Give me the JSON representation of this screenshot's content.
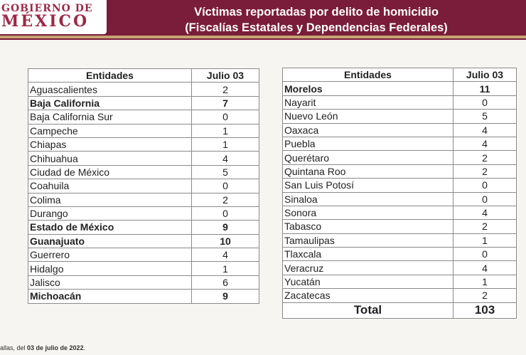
{
  "logo": {
    "line1": "GOBIERNO DE",
    "line2": "MÉXICO"
  },
  "title": {
    "line1": "Víctimas reportadas por delito de homicidio",
    "line2": "(Fiscalías Estatales y Dependencias Federales)"
  },
  "colors": {
    "header": "#7a1d3a",
    "accent": "#c7a472"
  },
  "table_left": {
    "headers": [
      "Entidades",
      "Julio 03"
    ],
    "rows": [
      {
        "entity": "Aguascalientes",
        "value": "2",
        "bold": false
      },
      {
        "entity": "Baja California",
        "value": "7",
        "bold": true
      },
      {
        "entity": "Baja California Sur",
        "value": "0",
        "bold": false
      },
      {
        "entity": "Campeche",
        "value": "1",
        "bold": false
      },
      {
        "entity": "Chiapas",
        "value": "1",
        "bold": false
      },
      {
        "entity": "Chihuahua",
        "value": "4",
        "bold": false
      },
      {
        "entity": "Ciudad de México",
        "value": "5",
        "bold": false
      },
      {
        "entity": "Coahuila",
        "value": "0",
        "bold": false
      },
      {
        "entity": "Colima",
        "value": "2",
        "bold": false
      },
      {
        "entity": "Durango",
        "value": "0",
        "bold": false
      },
      {
        "entity": "Estado de México",
        "value": "9",
        "bold": true
      },
      {
        "entity": "Guanajuato",
        "value": "10",
        "bold": true
      },
      {
        "entity": "Guerrero",
        "value": "4",
        "bold": false
      },
      {
        "entity": "Hidalgo",
        "value": "1",
        "bold": false
      },
      {
        "entity": "Jalisco",
        "value": "6",
        "bold": false
      },
      {
        "entity": "Michoacán",
        "value": "9",
        "bold": true
      }
    ]
  },
  "table_right": {
    "headers": [
      "Entidades",
      "Julio 03"
    ],
    "rows": [
      {
        "entity": "Morelos",
        "value": "11",
        "bold": true
      },
      {
        "entity": "Nayarit",
        "value": "0",
        "bold": false
      },
      {
        "entity": "Nuevo León",
        "value": "5",
        "bold": false
      },
      {
        "entity": "Oaxaca",
        "value": "4",
        "bold": false
      },
      {
        "entity": "Puebla",
        "value": "4",
        "bold": false
      },
      {
        "entity": "Querétaro",
        "value": "2",
        "bold": false
      },
      {
        "entity": "Quintana Roo",
        "value": "2",
        "bold": false
      },
      {
        "entity": "San Luis Potosí",
        "value": "0",
        "bold": false
      },
      {
        "entity": "Sinaloa",
        "value": "0",
        "bold": false
      },
      {
        "entity": "Sonora",
        "value": "4",
        "bold": false
      },
      {
        "entity": "Tabasco",
        "value": "2",
        "bold": false
      },
      {
        "entity": "Tamaulipas",
        "value": "1",
        "bold": false
      },
      {
        "entity": "Tlaxcala",
        "value": "0",
        "bold": false
      },
      {
        "entity": "Veracruz",
        "value": "4",
        "bold": false
      },
      {
        "entity": "Yucatán",
        "value": "1",
        "bold": false
      },
      {
        "entity": "Zacatecas",
        "value": "2",
        "bold": false
      }
    ],
    "total_label": "Total",
    "total_value": "103"
  },
  "footnote": {
    "prefix": "allas, del ",
    "date": "03 de julio de 2022",
    "suffix": "."
  }
}
